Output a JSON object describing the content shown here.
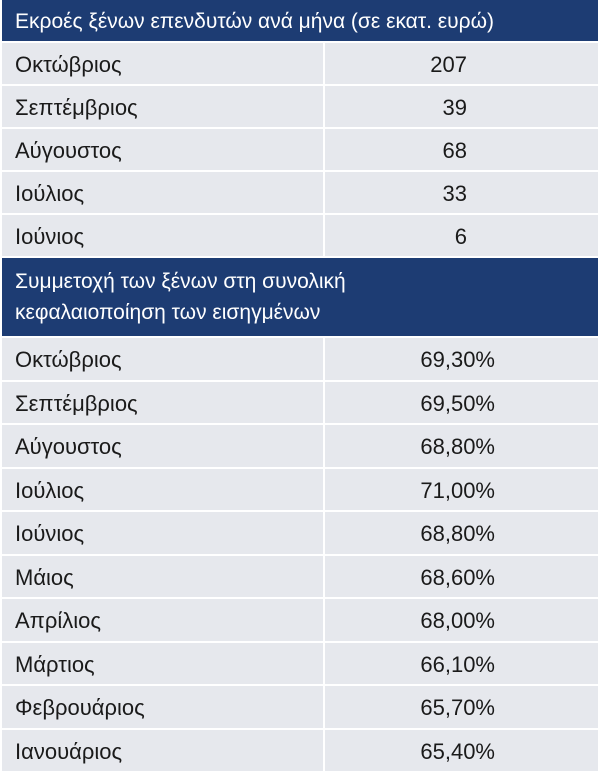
{
  "chart_data": [
    {
      "type": "table",
      "title": "Εκροές ξένων επενδυτών ανά μήνα (σε εκατ. ευρώ)",
      "categories": [
        "Οκτώβριος",
        "Σεπτέμβριος",
        "Αύγουστος",
        "Ιούλιος",
        "Ιούνιος"
      ],
      "values": [
        "207",
        "39",
        "68",
        "33",
        "6"
      ]
    },
    {
      "type": "table",
      "title": "Συμμετοχή των ξένων στη συνολική\nκεφαλαιοποίηση των εισηγμένων",
      "categories": [
        "Οκτώβριος",
        "Σεπτέμβριος",
        "Αύγουστος",
        "Ιούλιος",
        "Ιούνιος",
        "Μάιος",
        "Απρίλιος",
        "Μάρτιος",
        "Φεβρουάριος",
        "Ιανουάριος"
      ],
      "values": [
        "69,30%",
        "69,50%",
        "68,80%",
        "71,00%",
        "68,80%",
        "68,60%",
        "68,00%",
        "66,10%",
        "65,70%",
        "65,40%"
      ]
    }
  ],
  "colors": {
    "header_bg": "#1d3c73",
    "row_bg": "#e6e8ed"
  }
}
